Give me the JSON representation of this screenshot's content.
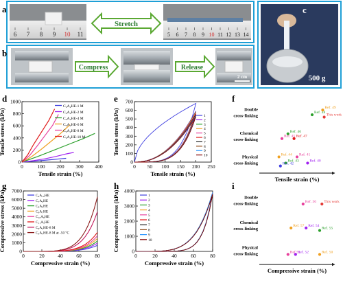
{
  "panel_labels": {
    "a": "a",
    "b": "b",
    "c": "c",
    "d": "d",
    "e": "e",
    "f": "f",
    "g": "g",
    "h": "h",
    "i": "i"
  },
  "photo_text": {
    "stretch": "Stretch",
    "compress": "Compress",
    "release": "Release",
    "scale_bar": "2 cm",
    "weight": "500 g",
    "ruler_left": [
      "6",
      "7",
      "8",
      "9",
      "10",
      "11"
    ],
    "ruler_right": [
      "5",
      "6",
      "7",
      "8",
      "9",
      "10",
      "11",
      "12",
      "13",
      "14"
    ]
  },
  "colors": {
    "frame_blue": "#1e9fd6",
    "arrow_green": "#5aa832",
    "arrow_text": "#2e7d32",
    "label_blue": "#1565c0",
    "this_work": "#e53935"
  },
  "chart_data": [
    {
      "id": "d",
      "type": "line",
      "xlabel": "Tensile strain (%)",
      "ylabel": "Tensile stress (kPa)",
      "xlim": [
        0,
        400
      ],
      "ylim": [
        0,
        1000
      ],
      "xticks": [
        0,
        100,
        200,
        300,
        400
      ],
      "yticks": [
        0,
        200,
        400,
        600,
        800,
        1000
      ],
      "series": [
        {
          "name": "C₉A₄HE-1 M",
          "color": "#3f3fe0",
          "points": [
            [
              0,
              0
            ],
            [
              50,
              12
            ],
            [
              100,
              25
            ],
            [
              150,
              40
            ],
            [
              200,
              55
            ],
            [
              230,
              62
            ]
          ]
        },
        {
          "name": "C₉A₄HE-2 M",
          "color": "#a020f0",
          "points": [
            [
              0,
              0
            ],
            [
              60,
              25
            ],
            [
              120,
              55
            ],
            [
              180,
              95
            ],
            [
              230,
              135
            ],
            [
              270,
              160
            ]
          ]
        },
        {
          "name": "C₉A₄HE-4 M",
          "color": "#2ca02c",
          "points": [
            [
              0,
              0
            ],
            [
              80,
              90
            ],
            [
              160,
              190
            ],
            [
              240,
              290
            ],
            [
              320,
              390
            ],
            [
              380,
              475
            ]
          ]
        },
        {
          "name": "C₉A₄HE-6 M",
          "color": "#f0a020",
          "points": [
            [
              0,
              0
            ],
            [
              50,
              90
            ],
            [
              100,
              210
            ],
            [
              150,
              340
            ],
            [
              200,
              470
            ],
            [
              250,
              620
            ]
          ]
        },
        {
          "name": "C₉A₄HE-8 M",
          "color": "#e8409c",
          "points": [
            [
              0,
              0
            ],
            [
              40,
              110
            ],
            [
              80,
              270
            ],
            [
              120,
              440
            ],
            [
              160,
              610
            ],
            [
              190,
              790
            ]
          ]
        },
        {
          "name": "C₉A₄HE-10 M",
          "color": "#e01818",
          "points": [
            [
              0,
              0
            ],
            [
              30,
              120
            ],
            [
              60,
              290
            ],
            [
              100,
              490
            ],
            [
              140,
              690
            ],
            [
              170,
              880
            ]
          ]
        }
      ]
    },
    {
      "id": "e",
      "type": "line",
      "xlabel": "Tensile strain (%)",
      "ylabel": "Tensile stress (kPa)",
      "xlim": [
        0,
        250
      ],
      "ylim": [
        0,
        700
      ],
      "xticks": [
        0,
        50,
        100,
        150,
        200,
        250
      ],
      "yticks": [
        0,
        100,
        200,
        300,
        400,
        500,
        600,
        700
      ],
      "loops": [
        "1",
        "2",
        "3",
        "4",
        "5",
        "6",
        "7",
        "8",
        "9",
        "10"
      ],
      "colors": [
        "#3f3fe0",
        "#a020f0",
        "#2ca02c",
        "#f0a020",
        "#e8409c",
        "#e01818",
        "#222222",
        "#8b4513",
        "#1e90ff",
        "#800000"
      ]
    },
    {
      "id": "f",
      "type": "scatter",
      "xlabel": "Tensile strain (%)",
      "categories": [
        "Double\ncross-linking",
        "Chemical\ncross-linking",
        "Physical\ncross-linking"
      ],
      "points": [
        {
          "label": "This work",
          "x": 0.86,
          "row": 0,
          "dy": 0.15,
          "color": "#e53935"
        },
        {
          "label": "Ref. 48",
          "x": 0.7,
          "row": 0,
          "dy": 0.05,
          "color": "#2ca02c"
        },
        {
          "label": "Ref. 49",
          "x": 0.84,
          "row": 0,
          "dy": -0.15,
          "color": "#f0a020"
        },
        {
          "label": "Ref. 46",
          "x": 0.38,
          "row": 1,
          "dy": -0.15,
          "color": "#2ca02c"
        },
        {
          "label": "Ref. 45",
          "x": 0.3,
          "row": 1,
          "dy": 0.05,
          "color": "#e8409c"
        },
        {
          "label": "Ref. 47",
          "x": 0.46,
          "row": 1,
          "dy": 0.05,
          "color": "#e01818"
        },
        {
          "label": "Ref. 44",
          "x": 0.26,
          "row": 2,
          "dy": -0.18,
          "color": "#f0a020"
        },
        {
          "label": "Ref. 41",
          "x": 0.5,
          "row": 2,
          "dy": -0.18,
          "color": "#e8409c"
        },
        {
          "label": "Ref. 43",
          "x": 0.35,
          "row": 2,
          "dy": 0.08,
          "color": "#2ca02c"
        },
        {
          "label": "Ref. 40",
          "x": 0.64,
          "row": 2,
          "dy": 0.08,
          "color": "#a020f0"
        },
        {
          "label": "Ref. 42",
          "x": 0.28,
          "row": 2,
          "dy": 0.2,
          "color": "#3f3fe0"
        }
      ]
    },
    {
      "id": "g",
      "type": "line",
      "xlabel": "Compressive strain (%)",
      "ylabel": "Compressive stress (kPa)",
      "xlim": [
        0,
        80
      ],
      "ylim": [
        0,
        7000
      ],
      "xticks": [
        0,
        20,
        40,
        60,
        80
      ],
      "yticks": [
        0,
        1000,
        2000,
        3000,
        4000,
        5000,
        6000,
        7000
      ],
      "series": [
        {
          "name": "C₆A₁₀HE",
          "color": "#3f3fe0",
          "final": 700
        },
        {
          "name": "C₇A₉HE",
          "color": "#a020f0",
          "final": 950
        },
        {
          "name": "C₈A₈HE",
          "color": "#2ca02c",
          "final": 1200
        },
        {
          "name": "C₉A₇HE",
          "color": "#f0a020",
          "final": 1500
        },
        {
          "name": "C₁₀A₆HE",
          "color": "#e8409c",
          "final": 1800
        },
        {
          "name": "C₁₁A₅HE",
          "color": "#e01818",
          "final": 2200
        },
        {
          "name": "C₉A₄HE-8 M",
          "color": "#c2185b",
          "final": 4600
        },
        {
          "name": "C₉A₄HE-8 M at -50 °C",
          "color": "#8b1a1a",
          "final": 6300
        }
      ]
    },
    {
      "id": "h",
      "type": "line",
      "xlabel": "Compressive strain (%)",
      "ylabel": "Compressive stress (kPa)",
      "xlim": [
        0,
        80
      ],
      "ylim": [
        0,
        4000
      ],
      "xticks": [
        0,
        20,
        40,
        60,
        80
      ],
      "yticks": [
        0,
        1000,
        2000,
        3000,
        4000
      ],
      "loops": [
        "1",
        "2",
        "3",
        "4",
        "5",
        "6",
        "7",
        "8",
        "9",
        "10"
      ],
      "colors": [
        "#3f3fe0",
        "#a020f0",
        "#2ca02c",
        "#f0a020",
        "#e8409c",
        "#e01818",
        "#222222",
        "#8b4513",
        "#1e90ff",
        "#800000"
      ]
    },
    {
      "id": "i",
      "type": "scatter",
      "xlabel": "Compressive strain (%)",
      "categories": [
        "Double\ncross-linking",
        "Chemical\ncross-linking",
        "Physical\ncross-linking"
      ],
      "points": [
        {
          "label": "This work",
          "x": 0.83,
          "row": 0,
          "dy": 0.1,
          "color": "#e53935"
        },
        {
          "label": "Ref. 56",
          "x": 0.58,
          "row": 0,
          "dy": 0.1,
          "color": "#e8409c"
        },
        {
          "label": "Ref. 57",
          "x": 0.42,
          "row": 1,
          "dy": 0.05,
          "color": "#f0a020"
        },
        {
          "label": "Ref. 54",
          "x": 0.62,
          "row": 1,
          "dy": 0.05,
          "color": "#a020f0"
        },
        {
          "label": "Ref. 55",
          "x": 0.8,
          "row": 1,
          "dy": 0.15,
          "color": "#2ca02c"
        },
        {
          "label": "Ref.51",
          "x": 0.38,
          "row": 2,
          "dy": 0.1,
          "color": "#e8409c"
        },
        {
          "label": "Ref. 52",
          "x": 0.48,
          "row": 2,
          "dy": 0.1,
          "color": "#a020f0"
        },
        {
          "label": "Ref. 50",
          "x": 0.8,
          "row": 2,
          "dy": 0.1,
          "color": "#f0a020"
        }
      ]
    }
  ]
}
